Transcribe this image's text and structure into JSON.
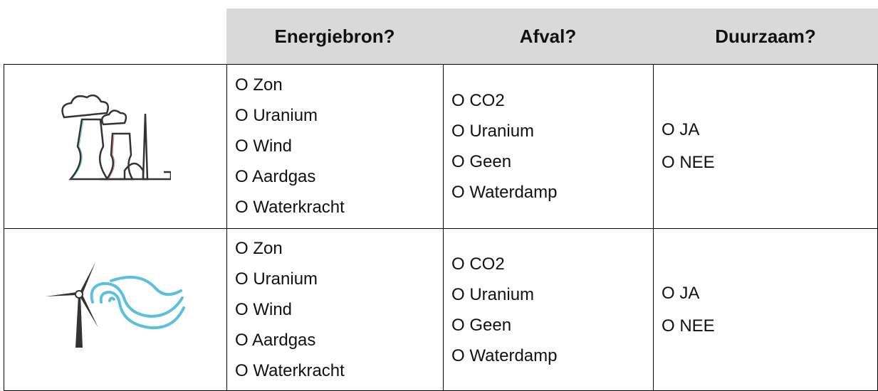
{
  "header": [
    "Energiebron?",
    "Afval?",
    "Duurzaam?"
  ],
  "rows": [
    {
      "energy": [
        "O Zon",
        "O Uranium",
        "O Wind",
        "O Aardgas",
        "O Waterkracht"
      ],
      "waste": [
        "O CO2",
        "O Uranium",
        "O Geen",
        "O Waterdamp"
      ],
      "sustainable": [
        "O JA",
        "O NEE"
      ]
    },
    {
      "energy": [
        "O Zon",
        "O Uranium",
        "O Wind",
        "O Aardgas",
        "O Waterkracht"
      ],
      "waste": [
        "O CO2",
        "O Uranium",
        "O Geen",
        "O Waterdamp"
      ],
      "sustainable": [
        "O JA",
        "O NEE"
      ]
    }
  ]
}
